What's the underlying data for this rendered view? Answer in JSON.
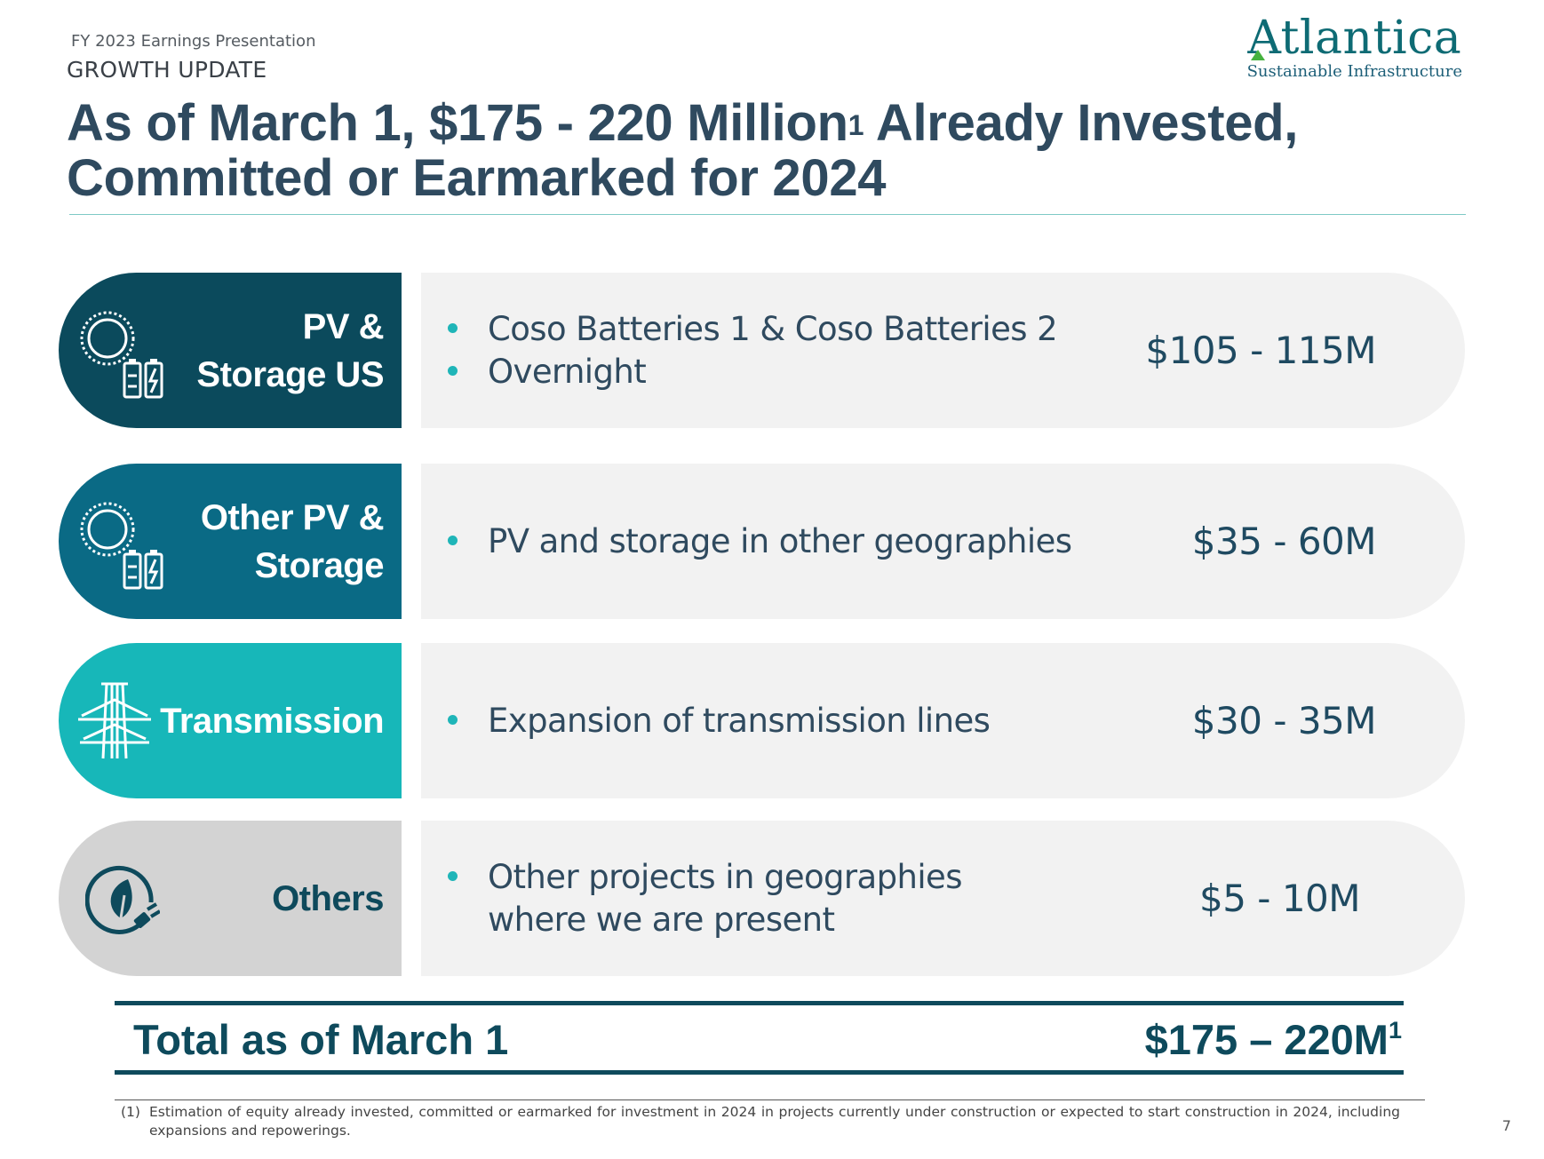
{
  "header": {
    "eyebrow": "FY 2023 Earnings Presentation",
    "section": "GROWTH UPDATE",
    "title_line1_pre": "As of March 1, $175 - 220 Million",
    "title_sup": "1",
    "title_line1_post": " Already Invested,",
    "title_line2": "Committed or Earmarked for 2024"
  },
  "logo": {
    "wordmark": "Atlantica",
    "tagline": "Sustainable Infrastructure"
  },
  "rows": [
    {
      "label": "PV &\nStorage US",
      "color": "#0b4a5c",
      "icon": "sun-battery-icon",
      "bullets": [
        "Coso Batteries 1 & Coso Batteries 2",
        "Overnight"
      ],
      "amount": "$105 - 115M"
    },
    {
      "label": "Other PV  &\nStorage",
      "color": "#0a6a85",
      "icon": "sun-battery-icon",
      "bullets": [
        "PV and storage in other geographies"
      ],
      "amount": "$35 - 60M"
    },
    {
      "label": "Transmission",
      "color": "#17b7b9",
      "icon": "transmission-tower-icon",
      "bullets": [
        "Expansion of transmission lines"
      ],
      "amount": "$30 - 35M"
    },
    {
      "label": "Others",
      "color": "#d3d3d3",
      "icon": "leaf-plug-icon",
      "bullets": [
        "Other projects in geographies where we are present"
      ],
      "amount": "$5 - 10M"
    }
  ],
  "total": {
    "label": "Total as of March 1",
    "value": "$175 – 220M",
    "value_sup": "1"
  },
  "footnote": {
    "number": "(1)",
    "text": "Estimation of equity already invested, committed or earmarked for investment in 2024 in projects currently under construction or expected to start construction in 2024, including expansions and repowerings."
  },
  "page_number": "7"
}
